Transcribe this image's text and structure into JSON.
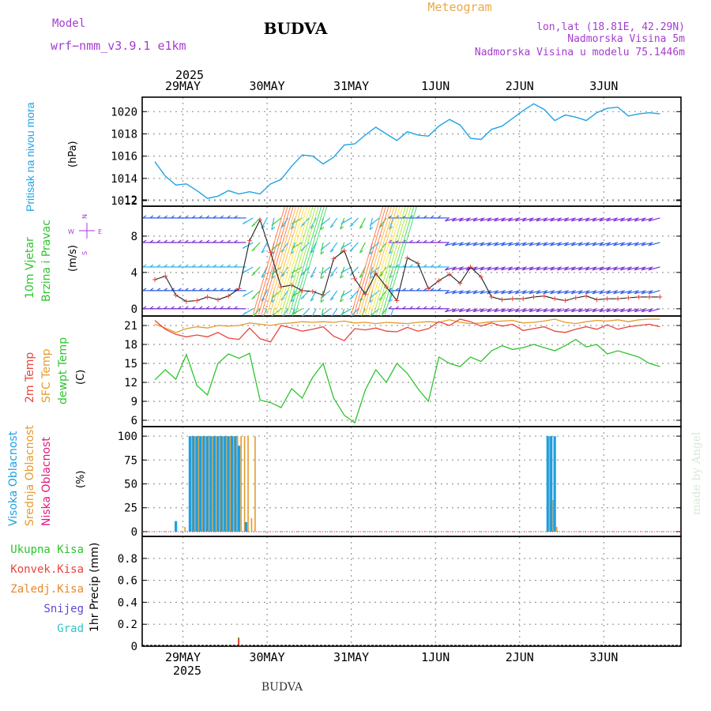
{
  "header": {
    "model_label": "Model",
    "model_name": "wrf−nmm_v3.9.1  e1km",
    "title": "BUDVA",
    "product": "Meteogram",
    "lonlat": "lon,lat (18.81E, 42.29N)",
    "elev": "Nadmorska Visina 5m",
    "elev_model": "Nadmorska Visina u modelu 75.1446m",
    "footer": "BUDVA",
    "credit": "made by Angel"
  },
  "colors": {
    "pressure": "#1fa3e6",
    "t2m": "#e8453c",
    "tsfc": "#e69b2a",
    "dewpt": "#2ec42e",
    "high_cloud": "#1f9ee0",
    "mid_cloud": "#e69b2a",
    "low_cloud": "#e0197a",
    "purple": "#a53ccf",
    "tp": "#2ec42e",
    "conv": "#e8453c",
    "frz": "#e6892a",
    "snow": "#5a4ad6",
    "grad": "#33c4c4"
  },
  "time_axis": {
    "top_labels": [
      "29MAY",
      "30MAY",
      "31MAY",
      "1JUN",
      "2JUN",
      "3JUN"
    ],
    "year": "2025",
    "bottom_labels": [
      "29MAY",
      "30MAY",
      "31MAY",
      "1JUN",
      "2JUN",
      "3JUN"
    ]
  },
  "chart_data": [
    {
      "type": "line",
      "name": "pressure",
      "ylabel": "Pritisak na nivou mora",
      "unit": "(hPa)",
      "ylim": [
        1011.5,
        1021.3
      ],
      "yticks": [
        1012,
        1014,
        1016,
        1018,
        1020
      ],
      "x_hours": [
        0,
        3,
        6,
        9,
        12,
        15,
        18,
        21,
        24,
        27,
        30,
        33,
        36,
        39,
        42,
        45,
        48,
        51,
        54,
        57,
        60,
        63,
        66,
        69,
        72,
        75,
        78,
        81,
        84,
        87,
        90,
        93,
        96,
        99,
        102,
        105,
        108,
        111,
        114,
        117,
        120,
        123,
        126,
        129,
        132,
        135,
        138,
        141,
        144
      ],
      "values": [
        1015.5,
        1014.2,
        1013.4,
        1013.5,
        1012.9,
        1012.2,
        1012.4,
        1012.9,
        1012.6,
        1012.8,
        1012.6,
        1013.5,
        1013.9,
        1015.1,
        1016.1,
        1016.0,
        1015.3,
        1015.9,
        1017.0,
        1017.1,
        1017.9,
        1018.6,
        1018.0,
        1017.4,
        1018.2,
        1017.9,
        1017.8,
        1018.7,
        1019.3,
        1018.8,
        1017.6,
        1017.5,
        1018.4,
        1018.7,
        1019.4,
        1020.1,
        1020.7,
        1020.2,
        1019.2,
        1019.7,
        1019.5,
        1019.2,
        1019.9,
        1020.3,
        1020.4,
        1019.6,
        1019.8,
        1019.9,
        1019.8
      ]
    },
    {
      "type": "line",
      "name": "wind",
      "ylabel": "10m Vjetar Brzina i Pravac",
      "unit": "(m/s)",
      "ylim": [
        -0.8,
        11.3
      ],
      "yticks": [
        0,
        4,
        8,
        12
      ],
      "x_hours": [
        0,
        3,
        6,
        9,
        12,
        15,
        18,
        21,
        24,
        27,
        30,
        33,
        36,
        39,
        42,
        45,
        48,
        51,
        54,
        57,
        60,
        63,
        66,
        69,
        72,
        75,
        78,
        81,
        84,
        87,
        90,
        93,
        96,
        99,
        102,
        105,
        108,
        111,
        114,
        117,
        120,
        123,
        126,
        129,
        132,
        135,
        138,
        141,
        144
      ],
      "speed": [
        3.2,
        3.6,
        1.5,
        0.8,
        0.9,
        1.3,
        1.0,
        1.4,
        2.2,
        7.5,
        9.8,
        6.2,
        2.4,
        2.6,
        2.0,
        1.9,
        1.5,
        5.5,
        6.4,
        3.3,
        1.6,
        3.9,
        2.4,
        0.9,
        5.6,
        5.0,
        2.2,
        3.1,
        3.8,
        2.8,
        4.6,
        3.5,
        1.3,
        1.0,
        1.1,
        1.1,
        1.3,
        1.4,
        1.1,
        0.9,
        1.2,
        1.4,
        1.0,
        1.1,
        1.1,
        1.2,
        1.3,
        1.3,
        1.3
      ]
    },
    {
      "type": "line",
      "name": "temperature",
      "ylabel": "2m Temp / SFC Temp / dewpt Temp",
      "unit": "(C)",
      "ylim": [
        5.0,
        22.5
      ],
      "yticks": [
        6,
        9,
        12,
        15,
        18,
        21
      ],
      "x_hours": [
        0,
        3,
        6,
        9,
        12,
        15,
        18,
        21,
        24,
        27,
        30,
        33,
        36,
        39,
        42,
        45,
        48,
        51,
        54,
        57,
        60,
        63,
        66,
        69,
        72,
        75,
        78,
        81,
        84,
        87,
        90,
        93,
        96,
        99,
        102,
        105,
        108,
        111,
        114,
        117,
        120,
        123,
        126,
        129,
        132,
        135,
        138,
        141,
        144
      ],
      "t2m": [
        21.8,
        20.4,
        19.6,
        19.2,
        19.5,
        19.2,
        19.9,
        19.0,
        18.8,
        20.6,
        18.9,
        18.4,
        21.0,
        20.6,
        20.1,
        20.4,
        20.8,
        19.3,
        18.6,
        20.5,
        20.3,
        20.6,
        20.1,
        20.0,
        20.7,
        20.1,
        20.5,
        21.6,
        21.0,
        22.0,
        21.6,
        20.9,
        21.4,
        20.9,
        21.2,
        20.2,
        20.5,
        20.8,
        20.1,
        19.9,
        20.4,
        20.8,
        20.4,
        21.1,
        20.4,
        20.8,
        21.0,
        21.2,
        20.8
      ],
      "tsfc": [
        21.2,
        20.6,
        19.9,
        20.5,
        20.8,
        20.6,
        21.0,
        20.9,
        21.0,
        21.4,
        21.2,
        21.0,
        21.3,
        21.4,
        21.6,
        21.5,
        21.6,
        21.5,
        21.7,
        21.4,
        21.5,
        21.3,
        21.5,
        21.4,
        21.3,
        21.5,
        21.6,
        21.5,
        21.9,
        21.5,
        21.3,
        21.4,
        21.6,
        21.7,
        21.8,
        21.4,
        21.5,
        21.7,
        22.0,
        21.5,
        21.3,
        21.6,
        21.8,
        21.7,
        21.9,
        21.6,
        21.9,
        22.0,
        22.0
      ],
      "dewpt": [
        12.4,
        14.0,
        12.5,
        16.4,
        11.5,
        10.0,
        15.0,
        16.5,
        15.8,
        16.6,
        9.2,
        8.8,
        8.0,
        11.0,
        9.5,
        12.8,
        15.0,
        9.5,
        6.8,
        5.6,
        10.8,
        14.0,
        12.0,
        15.0,
        13.4,
        11.0,
        9.0,
        16.0,
        15.0,
        14.5,
        16.0,
        15.3,
        17.0,
        17.8,
        17.2,
        17.5,
        18.0,
        17.5,
        17.0,
        17.8,
        18.8,
        17.6,
        18.0,
        16.5,
        17.0,
        16.5,
        16.0,
        15.0,
        14.5
      ]
    },
    {
      "type": "bar",
      "name": "cloud cover",
      "ylabel": "Visoka Oblacnost / Srednja Oblacnost / Niska Oblacnost",
      "unit": "(%)",
      "ylim": [
        -5,
        110
      ],
      "yticks": [
        0,
        25,
        50,
        75,
        100
      ],
      "x_hours": [
        6,
        8,
        10,
        11,
        12,
        13,
        14,
        15,
        16,
        17,
        18,
        19,
        20,
        21,
        22,
        23,
        24,
        25,
        26,
        27,
        28,
        29,
        30,
        31,
        32,
        112,
        113,
        114
      ],
      "high": [
        11,
        0,
        100,
        100,
        100,
        100,
        100,
        100,
        100,
        100,
        100,
        100,
        100,
        100,
        100,
        100,
        90,
        0,
        10,
        0,
        0,
        0,
        0,
        0,
        0,
        100,
        100,
        100
      ],
      "mid": [
        0,
        5,
        100,
        100,
        100,
        100,
        100,
        100,
        100,
        100,
        100,
        100,
        100,
        100,
        100,
        100,
        100,
        100,
        100,
        14,
        100,
        0,
        0,
        0,
        0,
        100,
        33,
        5
      ],
      "low": [
        0,
        0,
        0,
        0,
        0,
        0,
        0,
        0,
        0,
        0,
        0,
        0,
        0,
        0,
        0,
        0,
        0,
        0,
        0,
        0,
        0,
        0,
        0,
        0,
        0,
        0,
        0,
        0
      ]
    },
    {
      "type": "bar",
      "name": "precipitation",
      "ylabel": "1hr Precip",
      "unit": "(mm)",
      "ylim": [
        0,
        1.0
      ],
      "yticks": [
        0,
        0.2,
        0.4,
        0.6,
        0.8
      ],
      "legend": [
        "Ukupna  Kisa",
        "Konvek.Kisa",
        "Zaledj.Kisa",
        "Snijeg",
        "Grad"
      ],
      "x_hours": [
        6,
        21,
        24,
        25,
        26,
        27,
        28,
        29,
        30,
        31,
        32,
        33,
        34,
        35,
        36,
        37,
        38,
        39,
        40,
        41,
        42,
        43,
        44,
        45,
        46,
        47,
        48,
        49,
        50,
        51,
        52,
        53,
        54,
        55,
        56,
        57,
        58,
        59,
        60,
        61,
        62,
        63,
        64,
        65,
        66,
        67,
        68,
        69,
        70,
        71,
        72,
        73,
        74,
        75,
        76,
        77,
        78,
        79,
        80,
        81,
        82,
        83,
        84,
        85,
        86,
        87,
        88,
        89,
        90,
        91,
        92,
        93,
        94,
        95,
        96,
        97,
        98,
        99,
        100,
        101,
        102,
        103,
        104,
        105,
        106,
        107,
        108,
        109,
        110,
        111,
        112,
        113,
        114
      ],
      "total": [
        0.005,
        0.005,
        0.08,
        0.01,
        0.005,
        0.005,
        0,
        0,
        0,
        0,
        0,
        0,
        0,
        0,
        0,
        0,
        0,
        0,
        0,
        0,
        0,
        0,
        0,
        0,
        0,
        0,
        0,
        0,
        0,
        0,
        0,
        0,
        0,
        0,
        0,
        0,
        0,
        0,
        0,
        0,
        0,
        0,
        0,
        0,
        0,
        0,
        0,
        0,
        0,
        0,
        0,
        0,
        0,
        0,
        0,
        0,
        0,
        0,
        0,
        0,
        0,
        0,
        0,
        0,
        0,
        0,
        0,
        0,
        0,
        0,
        0,
        0,
        0,
        0,
        0,
        0,
        0,
        0,
        0,
        0,
        0,
        0,
        0,
        0,
        0,
        0,
        0,
        0,
        0,
        0,
        0,
        0.01,
        0.005
      ],
      "convective": [
        0,
        0,
        0.07,
        0,
        0,
        0,
        0,
        0,
        0,
        0,
        0,
        0,
        0,
        0,
        0,
        0,
        0,
        0,
        0,
        0,
        0,
        0,
        0,
        0,
        0,
        0,
        0,
        0,
        0,
        0,
        0,
        0,
        0,
        0,
        0,
        0,
        0,
        0,
        0,
        0,
        0,
        0,
        0,
        0,
        0,
        0,
        0,
        0,
        0,
        0,
        0,
        0,
        0,
        0,
        0,
        0,
        0,
        0,
        0,
        0,
        0,
        0,
        0,
        0,
        0,
        0,
        0,
        0,
        0,
        0,
        0,
        0,
        0,
        0,
        0,
        0,
        0,
        0,
        0,
        0,
        0,
        0,
        0,
        0,
        0,
        0,
        0,
        0,
        0,
        0,
        0,
        0.01,
        0
      ]
    }
  ]
}
